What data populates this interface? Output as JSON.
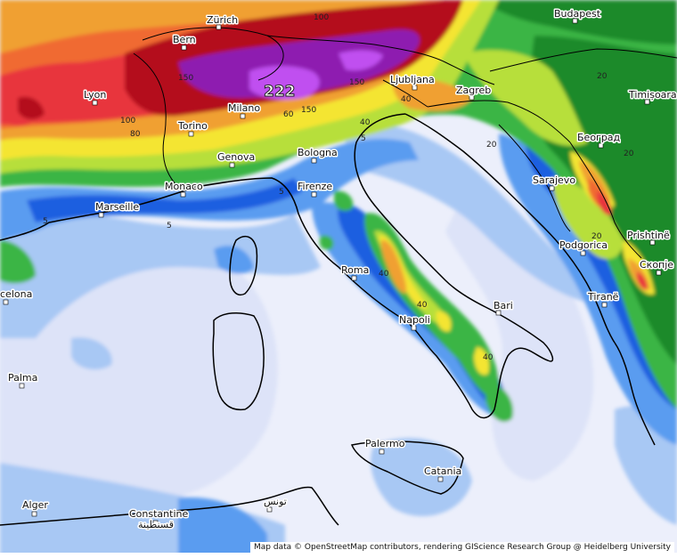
{
  "map": {
    "max_value": "222",
    "attribution": "Map data © OpenStreetMap contributors, rendering GIScience Research Group @ Heidelberg University",
    "colors": {
      "sea_light": "#eceffb",
      "sea_pale": "#dde3f8",
      "light_blue": "#a8c8f4",
      "blue": "#5a9cf0",
      "dark_blue": "#1d5fe0",
      "green": "#3bb545",
      "dark_green": "#1d8a2c",
      "yellow_green": "#b7df3a",
      "yellow": "#f4e530",
      "orange": "#f0a030",
      "red_orange": "#f06a32",
      "red": "#e8343c",
      "dark_red": "#b4101a",
      "purple": "#8e1cb0",
      "violet": "#c050f0"
    }
  },
  "cities": [
    {
      "id": "zurich",
      "label": "Zürich"
    },
    {
      "id": "bern",
      "label": "Bern"
    },
    {
      "id": "budapest",
      "label": "Budapest"
    },
    {
      "id": "lyon",
      "label": "Lyon"
    },
    {
      "id": "ljubljana",
      "label": "Ljubljana"
    },
    {
      "id": "zagreb",
      "label": "Zagreb"
    },
    {
      "id": "timisoara",
      "label": "Timișoara"
    },
    {
      "id": "milano",
      "label": "Milano"
    },
    {
      "id": "torino",
      "label": "Torino"
    },
    {
      "id": "beograd",
      "label": "Београд"
    },
    {
      "id": "genova",
      "label": "Genova"
    },
    {
      "id": "bologna",
      "label": "Bologna"
    },
    {
      "id": "sarajevo",
      "label": "Sarajevo"
    },
    {
      "id": "monaco",
      "label": "Monaco"
    },
    {
      "id": "firenze",
      "label": "Firenze"
    },
    {
      "id": "marseille",
      "label": "Marseille"
    },
    {
      "id": "podgorica",
      "label": "Podgorica"
    },
    {
      "id": "pristine",
      "label": "Prishtinë"
    },
    {
      "id": "skopje",
      "label": "Скопје"
    },
    {
      "id": "barcelona",
      "label": "celona"
    },
    {
      "id": "roma",
      "label": "Roma"
    },
    {
      "id": "tirane",
      "label": "Tiranë"
    },
    {
      "id": "bari",
      "label": "Bari"
    },
    {
      "id": "napoli",
      "label": "Napoli"
    },
    {
      "id": "palma",
      "label": "Palma"
    },
    {
      "id": "palermo",
      "label": "Palermo"
    },
    {
      "id": "catania",
      "label": "Catania"
    },
    {
      "id": "alger",
      "label": "Alger"
    },
    {
      "id": "tunis",
      "label": "تونس"
    },
    {
      "id": "constantine",
      "label": "Constantine"
    },
    {
      "id": "constantine_ar",
      "label": "قسنطينة"
    }
  ],
  "contour_labels": [
    "100",
    "150",
    "150",
    "100",
    "80",
    "60",
    "150",
    "40",
    "20",
    "20",
    "40",
    "5",
    "5",
    "5",
    "5",
    "20",
    "20",
    "40",
    "40",
    "40"
  ]
}
